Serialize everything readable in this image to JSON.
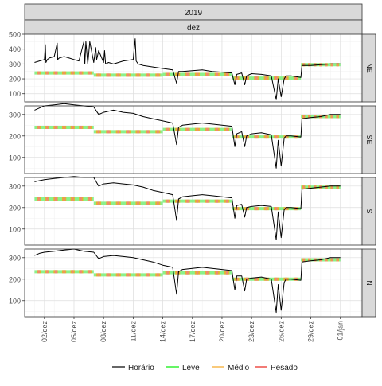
{
  "chart_data": {
    "type": "line",
    "title": "",
    "facet_top": [
      "2019",
      "dez"
    ],
    "panels": [
      "NE",
      "SE",
      "S",
      "N"
    ],
    "xlabel": "",
    "ylabel": "",
    "x_tick_labels": [
      "02/dez",
      "05/dez",
      "08/dez",
      "11/dez",
      "14/dez",
      "17/dez",
      "20/dez",
      "23/dez",
      "26/dez",
      "29/dez",
      "01/jan"
    ],
    "x_tick_days": [
      2,
      5,
      8,
      11,
      14,
      17,
      20,
      23,
      26,
      29,
      32
    ],
    "xlim": [
      0,
      34.2
    ],
    "grid": true,
    "legend_position": "bottom",
    "legend": [
      {
        "name": "Horário",
        "color": "#000000"
      },
      {
        "name": "Leve",
        "color": "#00ee00"
      },
      {
        "name": "Médio",
        "color": "#f5a623"
      },
      {
        "name": "Pesado",
        "color": "#e8231a"
      }
    ],
    "panel_axes": [
      {
        "name": "NE",
        "ylim": [
          45,
          500
        ],
        "yticks": [
          100,
          200,
          300,
          400,
          500
        ]
      },
      {
        "name": "SE",
        "ylim": [
          25,
          340
        ],
        "yticks": [
          100,
          200,
          300
        ]
      },
      {
        "name": "S",
        "ylim": [
          25,
          340
        ],
        "yticks": [
          100,
          200,
          300
        ]
      },
      {
        "name": "N",
        "ylim": [
          25,
          340
        ],
        "yticks": [
          100,
          200,
          300
        ]
      }
    ],
    "week_levels": {
      "x_start": [
        1,
        7,
        14,
        21,
        28
      ],
      "x_end": [
        7,
        14,
        21,
        28,
        32
      ],
      "NE": [
        240,
        225,
        230,
        205,
        295
      ],
      "SE": [
        240,
        220,
        230,
        195,
        290
      ],
      "S": [
        240,
        220,
        230,
        195,
        295
      ],
      "N": [
        235,
        220,
        230,
        200,
        290
      ]
    },
    "series": [
      {
        "name": "Horário",
        "panel": "NE",
        "x": [
          1,
          1.5,
          2,
          2.1,
          2.15,
          2.3,
          2.5,
          3,
          3.3,
          3.35,
          3.5,
          4,
          4.5,
          5,
          5.5,
          6,
          6.1,
          6.2,
          6.4,
          6.6,
          7,
          7.2,
          7.3,
          7.5,
          8,
          8.1,
          8.2,
          8.5,
          9,
          9.5,
          10,
          11,
          11.2,
          11.3,
          11.5,
          12,
          13,
          14,
          15,
          15.4,
          15.6,
          16,
          17,
          18,
          19,
          20,
          21,
          21.3,
          21.5,
          22,
          22.3,
          22.5,
          23,
          24,
          25,
          25.5,
          25.7,
          26,
          26.3,
          26.5,
          27,
          28,
          28.1,
          29,
          30,
          31,
          32
        ],
        "y": [
          310,
          320,
          330,
          430,
          310,
          330,
          340,
          350,
          440,
          330,
          340,
          350,
          340,
          330,
          320,
          450,
          300,
          450,
          300,
          450,
          310,
          410,
          330,
          390,
          310,
          390,
          300,
          310,
          300,
          310,
          320,
          330,
          470,
          320,
          300,
          290,
          280,
          270,
          260,
          170,
          250,
          250,
          255,
          260,
          250,
          245,
          240,
          160,
          230,
          240,
          160,
          220,
          235,
          230,
          220,
          60,
          200,
          80,
          200,
          220,
          220,
          210,
          290,
          290,
          295,
          300,
          300
        ]
      },
      {
        "name": "Horário",
        "panel": "SE",
        "x": [
          1,
          1.5,
          2,
          3,
          4,
          5,
          6,
          7,
          7.5,
          8,
          9,
          10,
          11,
          12,
          13,
          14,
          15,
          15.4,
          15.6,
          16,
          17,
          18,
          19,
          20,
          21,
          21.3,
          21.5,
          22,
          22.3,
          22.5,
          23,
          24,
          25,
          25.5,
          25.7,
          26,
          26.3,
          26.5,
          27,
          28,
          28.1,
          29,
          30,
          31,
          32
        ],
        "y": [
          320,
          330,
          340,
          345,
          350,
          345,
          340,
          335,
          300,
          310,
          320,
          310,
          305,
          290,
          280,
          270,
          260,
          160,
          240,
          250,
          255,
          260,
          255,
          250,
          245,
          150,
          210,
          220,
          150,
          200,
          210,
          215,
          205,
          50,
          180,
          60,
          190,
          200,
          200,
          195,
          280,
          285,
          290,
          300,
          300
        ]
      },
      {
        "name": "Horário",
        "panel": "S",
        "x": [
          1,
          1.5,
          2,
          3,
          4,
          5,
          6,
          7,
          7.5,
          8,
          9,
          10,
          11,
          12,
          13,
          14,
          15,
          15.4,
          15.6,
          16,
          17,
          18,
          19,
          20,
          21,
          21.3,
          21.5,
          22,
          22.3,
          22.5,
          23,
          24,
          25,
          25.5,
          25.7,
          26,
          26.3,
          26.5,
          27,
          28,
          28.1,
          29,
          30,
          31,
          32
        ],
        "y": [
          320,
          325,
          330,
          335,
          340,
          345,
          340,
          340,
          300,
          310,
          315,
          310,
          305,
          295,
          280,
          270,
          260,
          140,
          240,
          250,
          255,
          260,
          255,
          250,
          245,
          150,
          210,
          215,
          155,
          200,
          205,
          210,
          205,
          50,
          180,
          60,
          190,
          200,
          200,
          195,
          285,
          290,
          295,
          300,
          300
        ]
      },
      {
        "name": "Horário",
        "panel": "N",
        "x": [
          1,
          1.5,
          2,
          3,
          4,
          5,
          6,
          7,
          7.5,
          8,
          9,
          10,
          11,
          12,
          13,
          14,
          15,
          15.4,
          15.6,
          16,
          17,
          18,
          19,
          20,
          21,
          21.3,
          21.5,
          22,
          22.3,
          22.5,
          23,
          24,
          25,
          25.5,
          25.7,
          26,
          26.3,
          26.5,
          27,
          28,
          28.1,
          29,
          30,
          31,
          32
        ],
        "y": [
          310,
          320,
          325,
          330,
          335,
          340,
          330,
          325,
          295,
          305,
          310,
          305,
          300,
          290,
          280,
          265,
          255,
          130,
          235,
          245,
          250,
          255,
          250,
          245,
          240,
          150,
          215,
          215,
          145,
          200,
          205,
          210,
          200,
          45,
          175,
          55,
          185,
          200,
          200,
          195,
          280,
          285,
          290,
          300,
          300
        ]
      }
    ]
  }
}
